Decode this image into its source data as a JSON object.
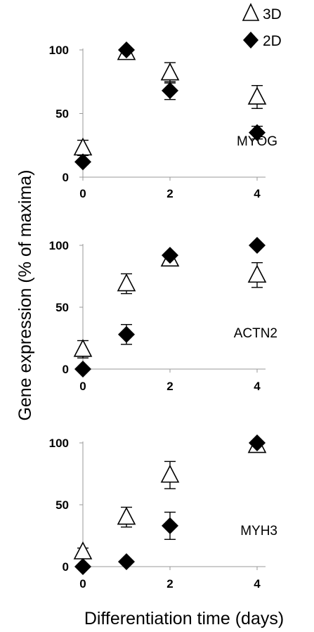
{
  "chart_data": {
    "type": "scatter",
    "y_axis_title": "Gene expression (% of maxima)",
    "x_axis_title": "Differentiation time (days)",
    "x_ticks": [
      "0",
      "2",
      "4"
    ],
    "y_ticks": [
      "0",
      "50",
      "100"
    ],
    "legend": [
      {
        "name": "3D",
        "marker": "triangle-open"
      },
      {
        "name": "2D",
        "marker": "diamond-filled"
      }
    ],
    "legend_position": "top-right",
    "panels": [
      {
        "label": "MYOG",
        "ylim": [
          0,
          100
        ],
        "xlim": [
          0,
          4
        ],
        "series": [
          {
            "name": "3D",
            "x": [
              0,
              1,
              2,
              4
            ],
            "y": [
              23,
              98,
              82,
              63
            ],
            "err": [
              6,
              2,
              8,
              9
            ]
          },
          {
            "name": "2D",
            "x": [
              0,
              1,
              2,
              4
            ],
            "y": [
              12,
              100,
              68,
              35
            ],
            "err": [
              2,
              1,
              7,
              5
            ]
          }
        ]
      },
      {
        "label": "ACTN2",
        "ylim": [
          0,
          100
        ],
        "xlim": [
          0,
          4
        ],
        "series": [
          {
            "name": "3D",
            "x": [
              0,
              1,
              2,
              4
            ],
            "y": [
              16,
              69,
              89,
              76
            ],
            "err": [
              7,
              8,
              2,
              10
            ]
          },
          {
            "name": "2D",
            "x": [
              0,
              1,
              2,
              4
            ],
            "y": [
              0,
              28,
              92,
              100
            ],
            "err": [
              1,
              8,
              2,
              1
            ]
          }
        ]
      },
      {
        "label": "MYH3",
        "ylim": [
          0,
          100
        ],
        "xlim": [
          0,
          4
        ],
        "series": [
          {
            "name": "3D",
            "x": [
              0,
              1,
              2,
              4
            ],
            "y": [
              12,
              40,
              74,
              98
            ],
            "err": [
              3,
              8,
              11,
              1
            ]
          },
          {
            "name": "2D",
            "x": [
              0,
              1,
              2,
              4
            ],
            "y": [
              0,
              4,
              33,
              100
            ],
            "err": [
              1,
              1,
              11,
              1
            ]
          }
        ]
      }
    ]
  }
}
